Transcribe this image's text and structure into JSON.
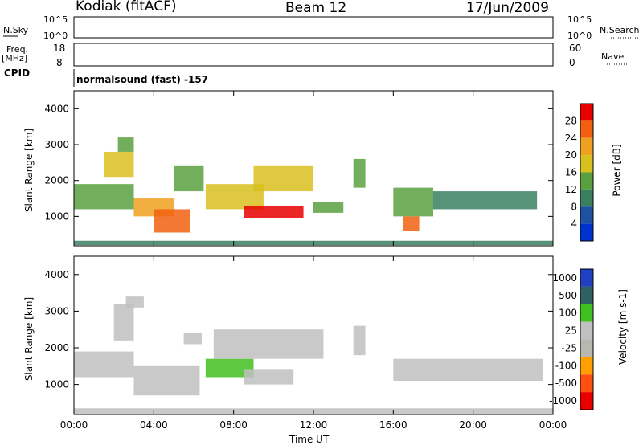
{
  "header": {
    "station": "Kodiak (fitACF)",
    "beam": "Beam 12",
    "date": "17/Jun/2009"
  },
  "top_panels": {
    "nsky_label": "N.Sky",
    "nsky_ticks": [
      "10^5",
      "10^0"
    ],
    "nsearch_label": "N.Search",
    "nsearch_ticks": [
      "10^5",
      "10^0"
    ],
    "freq_label_1": "Freq.",
    "freq_label_2": "[MHz]",
    "freq_ticks": [
      "18",
      "8"
    ],
    "nave_label": "Nave",
    "nave_ticks": [
      "60",
      "0"
    ],
    "cpid_label": "CPID",
    "cpid_value": "normalsound (fast) -157"
  },
  "x_axis": {
    "title": "Time UT",
    "ticks": [
      "00:00",
      "04:00",
      "08:00",
      "12:00",
      "16:00",
      "20:00",
      "00:00"
    ]
  },
  "colors": {
    "power_scale": [
      "#0033cc",
      "#2050a0",
      "#3a8060",
      "#5aa040",
      "#d8c020",
      "#f0a020",
      "#f06010",
      "#e80000"
    ],
    "velocity_scale": [
      "#e80000",
      "#ff5010",
      "#ffa000",
      "#b8b8b0",
      "#c0c0c0",
      "#40c020",
      "#306060",
      "#2040c0"
    ]
  },
  "chart_data": [
    {
      "type": "heatmap",
      "title": "",
      "xlabel": "",
      "ylabel": "Slant Range [km]",
      "xlim": [
        0,
        24
      ],
      "ylim": [
        180,
        4500
      ],
      "y_ticks": [
        "1000",
        "2000",
        "3000",
        "4000"
      ],
      "colorbar_label": "Power [dB]",
      "colorbar_ticks": [
        "4",
        "8",
        "12",
        "16",
        "20",
        "24",
        "28"
      ],
      "colorbar_range": [
        0,
        30
      ],
      "regions": [
        {
          "x": [
            0.0,
            24.0
          ],
          "y": [
            200,
            320
          ],
          "value": 8
        },
        {
          "x": [
            0.0,
            3.0
          ],
          "y": [
            1200,
            1900
          ],
          "value": 12
        },
        {
          "x": [
            1.5,
            3.0
          ],
          "y": [
            2100,
            2800
          ],
          "value": 18
        },
        {
          "x": [
            2.2,
            3.0
          ],
          "y": [
            2800,
            3200
          ],
          "value": 14
        },
        {
          "x": [
            3.0,
            5.0
          ],
          "y": [
            1000,
            1500
          ],
          "value": 20
        },
        {
          "x": [
            4.0,
            5.8
          ],
          "y": [
            550,
            1200
          ],
          "value": 26
        },
        {
          "x": [
            5.0,
            6.5
          ],
          "y": [
            1700,
            2400
          ],
          "value": 14
        },
        {
          "x": [
            6.6,
            9.5
          ],
          "y": [
            1200,
            1900
          ],
          "value": 18
        },
        {
          "x": [
            8.5,
            11.5
          ],
          "y": [
            950,
            1300
          ],
          "value": 28
        },
        {
          "x": [
            9.0,
            12.0
          ],
          "y": [
            1700,
            2400
          ],
          "value": 16
        },
        {
          "x": [
            12.0,
            13.5
          ],
          "y": [
            1100,
            1400
          ],
          "value": 12
        },
        {
          "x": [
            14.0,
            14.6
          ],
          "y": [
            1800,
            2600
          ],
          "value": 12
        },
        {
          "x": [
            16.0,
            18.0
          ],
          "y": [
            1000,
            1800
          ],
          "value": 14
        },
        {
          "x": [
            16.5,
            17.3
          ],
          "y": [
            600,
            1000
          ],
          "value": 26
        },
        {
          "x": [
            18.0,
            23.2
          ],
          "y": [
            1200,
            1700
          ],
          "value": 10
        }
      ]
    },
    {
      "type": "heatmap",
      "title": "",
      "xlabel": "Time UT",
      "ylabel": "Slant Range [km]",
      "xlim": [
        0,
        24
      ],
      "ylim": [
        180,
        4500
      ],
      "y_ticks": [
        "1000",
        "2000",
        "3000",
        "4000"
      ],
      "colorbar_label": "Velocity [m s-1]",
      "colorbar_ticks": [
        "1000",
        "500",
        "100",
        "25",
        "-25",
        "-100",
        "-500",
        "-1000"
      ],
      "colorbar_range": [
        -1200,
        1200
      ],
      "regions": [
        {
          "x": [
            0.0,
            24.0
          ],
          "y": [
            200,
            350
          ],
          "value": 80
        },
        {
          "x": [
            0.0,
            3.0
          ],
          "y": [
            1200,
            1900
          ],
          "value": 0
        },
        {
          "x": [
            2.0,
            3.0
          ],
          "y": [
            2200,
            3200
          ],
          "value": 0
        },
        {
          "x": [
            3.0,
            6.3
          ],
          "y": [
            700,
            1500
          ],
          "value": 0
        },
        {
          "x": [
            2.6,
            3.5
          ],
          "y": [
            3100,
            3400
          ],
          "value": 80
        },
        {
          "x": [
            5.5,
            6.4
          ],
          "y": [
            2100,
            2400
          ],
          "value": 80
        },
        {
          "x": [
            6.6,
            9.0
          ],
          "y": [
            1200,
            1700
          ],
          "value": 300
        },
        {
          "x": [
            8.5,
            11.0
          ],
          "y": [
            1000,
            1400
          ],
          "value": 80
        },
        {
          "x": [
            7.0,
            12.5
          ],
          "y": [
            1700,
            2500
          ],
          "value": 0
        },
        {
          "x": [
            14.0,
            14.6
          ],
          "y": [
            1800,
            2600
          ],
          "value": 0
        },
        {
          "x": [
            16.0,
            23.5
          ],
          "y": [
            1100,
            1700
          ],
          "value": 0
        }
      ]
    }
  ]
}
